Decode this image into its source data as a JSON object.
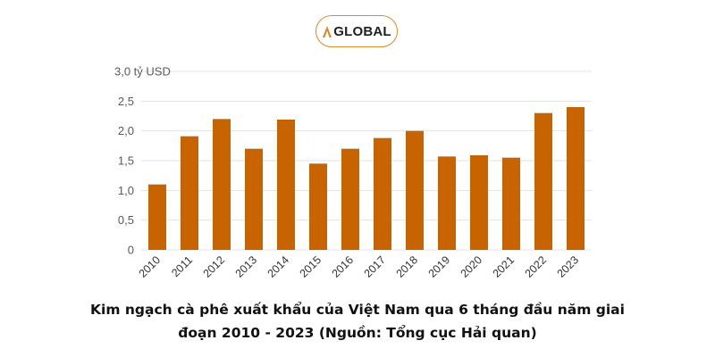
{
  "logo": {
    "text": "GLOBAL",
    "mark": "A",
    "border_color": "#d98a2b",
    "mark_color": "#d98a2b"
  },
  "chart_data": {
    "type": "bar",
    "title": "Kim ngạch cà phê xuất khẩu của Việt Nam qua 6 tháng đầu năm giai đoạn 2010 - 2023 (Nguồn: Tổng cục Hải quan)",
    "caption_line1": "Kim ngạch cà phê xuất khẩu của Việt Nam qua 6 tháng đầu năm giai",
    "caption_line2": "đoạn 2010 - 2023 (Nguồn: Tổng cục Hải quan)",
    "ylabel_unit": "tỷ USD",
    "categories": [
      "2010",
      "2011",
      "2012",
      "2013",
      "2014",
      "2015",
      "2016",
      "2017",
      "2018",
      "2019",
      "2020",
      "2021",
      "2022",
      "2023"
    ],
    "values": [
      1.1,
      1.91,
      2.2,
      1.7,
      2.19,
      1.45,
      1.7,
      1.88,
      2.0,
      1.57,
      1.59,
      1.55,
      2.3,
      2.4
    ],
    "ylim": [
      0,
      3.0
    ],
    "yticks": [
      0,
      0.5,
      1.0,
      1.5,
      2.0,
      2.5,
      3.0
    ],
    "ytick_labels": [
      "0",
      "0,5",
      "1,0",
      "1,5",
      "2,0",
      "2,5",
      "3,0 tỷ USD"
    ],
    "grid": true,
    "bar_color": "#c86400",
    "grid_color": "#e3e3e3"
  }
}
